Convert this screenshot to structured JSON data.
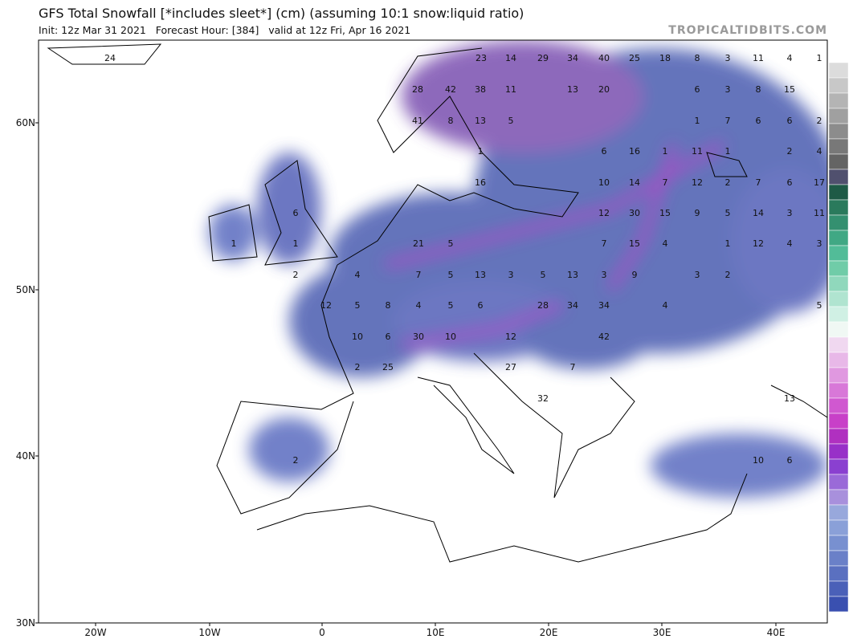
{
  "header": {
    "title": "GFS Total Snowfall [*includes sleet*] (cm) (assuming 10:1 snow:liquid ratio)",
    "subtitle": "Init: 12z Mar 31 2021   Forecast Hour: [384]   valid at 12z Fri, Apr 16 2021",
    "brand": "TROPICALTIDBITS.COM"
  },
  "map": {
    "lat_labels": [
      "60N",
      "50N",
      "40N",
      "30N"
    ],
    "lon_labels": [
      "20W",
      "10W",
      "0",
      "10E",
      "20E",
      "30E",
      "40E"
    ],
    "point_labels": [
      24,
      23,
      14,
      29,
      34,
      40,
      25,
      18,
      8,
      3,
      11,
      4,
      1,
      28,
      42,
      38,
      11,
      13,
      20,
      6,
      3,
      8,
      15,
      41,
      8,
      13,
      5,
      1,
      7,
      6,
      6,
      2,
      1,
      6,
      16,
      1,
      11,
      1,
      2,
      4,
      16,
      10,
      14,
      7,
      12,
      2,
      7,
      6,
      17,
      6,
      12,
      30,
      15,
      9,
      5,
      14,
      3,
      11,
      1,
      1,
      21,
      5,
      7,
      15,
      4,
      1,
      12,
      4,
      3,
      2,
      4,
      7,
      5,
      13,
      3,
      5,
      13,
      3,
      9,
      3,
      2,
      12,
      5,
      8,
      4,
      5,
      6,
      28,
      34,
      34,
      4,
      5,
      10,
      6,
      30,
      10,
      12,
      42,
      2,
      25,
      27,
      7,
      13,
      32,
      2,
      10,
      6
    ]
  }
}
